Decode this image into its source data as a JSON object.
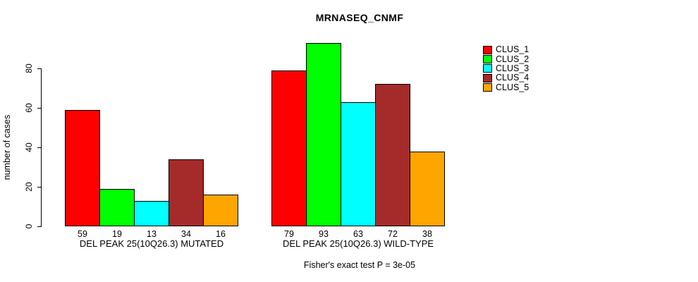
{
  "chart_data": {
    "type": "bar",
    "title": "MRNASEQ_CNMF",
    "ylabel": "number of cases",
    "xlabel": "",
    "ylim": [
      0,
      95
    ],
    "yticks": [
      0,
      20,
      40,
      60,
      80
    ],
    "grid": false,
    "legend_position": "top-right",
    "values_shown_below_bars": true,
    "categories": [
      "DEL PEAK 25(10Q26.3) MUTATED",
      "DEL PEAK 25(10Q26.3) WILD-TYPE"
    ],
    "series": [
      {
        "name": "CLUS_1",
        "color": "#FF0000",
        "values": [
          59,
          79
        ]
      },
      {
        "name": "CLUS_2",
        "color": "#00FF00",
        "values": [
          19,
          93
        ]
      },
      {
        "name": "CLUS_3",
        "color": "#00FFFF",
        "values": [
          13,
          63
        ]
      },
      {
        "name": "CLUS_4",
        "color": "#A52A2A",
        "values": [
          34,
          72
        ]
      },
      {
        "name": "CLUS_5",
        "color": "#FFA500",
        "values": [
          16,
          38
        ]
      }
    ],
    "annotation": "Fisher's exact test P = 3e-05"
  }
}
